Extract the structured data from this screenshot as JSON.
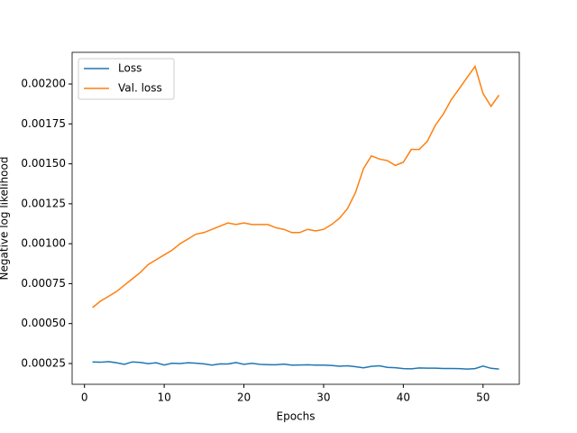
{
  "chart_data": {
    "type": "line",
    "xlabel": "Epochs",
    "ylabel": "Negative log likelihood",
    "x": [
      1,
      2,
      3,
      4,
      5,
      6,
      7,
      8,
      9,
      10,
      11,
      12,
      13,
      14,
      15,
      16,
      17,
      18,
      19,
      20,
      21,
      22,
      23,
      24,
      25,
      26,
      27,
      28,
      29,
      30,
      31,
      32,
      33,
      34,
      35,
      36,
      37,
      38,
      39,
      40,
      41,
      42,
      43,
      44,
      45,
      46,
      47,
      48,
      49,
      50,
      51,
      52
    ],
    "series": [
      {
        "name": "Loss",
        "color": "#1f77b4",
        "values": [
          0.00026,
          0.000258,
          0.000262,
          0.000255,
          0.000245,
          0.00026,
          0.000257,
          0.000249,
          0.000255,
          0.000241,
          0.000252,
          0.00025,
          0.000255,
          0.000252,
          0.000248,
          0.00024,
          0.000248,
          0.000247,
          0.000256,
          0.000245,
          0.000251,
          0.000245,
          0.000243,
          0.000242,
          0.000246,
          0.00024,
          0.000241,
          0.000242,
          0.00024,
          0.00024,
          0.000238,
          0.000233,
          0.000236,
          0.00023,
          0.000223,
          0.000232,
          0.000236,
          0.000226,
          0.000224,
          0.000218,
          0.000217,
          0.000222,
          0.000221,
          0.000221,
          0.000219,
          0.000219,
          0.000218,
          0.000215,
          0.000218,
          0.000234,
          0.00022,
          0.000215
        ]
      },
      {
        "name": "Val. loss",
        "color": "#ff7f0e",
        "values": [
          0.0006,
          0.00064,
          0.00067,
          0.0007,
          0.00074,
          0.00078,
          0.00082,
          0.00087,
          0.0009,
          0.00093,
          0.00096,
          0.001,
          0.00103,
          0.00106,
          0.00107,
          0.00109,
          0.00111,
          0.00113,
          0.00112,
          0.00113,
          0.00112,
          0.00112,
          0.00112,
          0.0011,
          0.00109,
          0.00107,
          0.00107,
          0.00109,
          0.00108,
          0.00109,
          0.00112,
          0.00116,
          0.00122,
          0.00132,
          0.00147,
          0.00155,
          0.00153,
          0.00152,
          0.00149,
          0.00151,
          0.00159,
          0.00159,
          0.00164,
          0.00174,
          0.00181,
          0.0019,
          0.00197,
          0.00204,
          0.00211,
          0.00194,
          0.00186,
          0.00193
        ]
      }
    ],
    "xlim": [
      -1.55,
      54.55
    ],
    "xticks": [
      0,
      10,
      20,
      30,
      40,
      50
    ],
    "ylim": [
      0.00012,
      0.002198
    ],
    "yticks": [
      0.00025,
      {
        "value": 0.0005,
        "label": "0.00050"
      },
      0.00075,
      {
        "value": 0.001,
        "label": "0.00100"
      },
      0.00125,
      {
        "value": 0.0015,
        "label": "0.00150"
      },
      0.00175,
      {
        "value": 0.002,
        "label": "0.00200"
      }
    ],
    "legend": "upper left",
    "grid": false
  }
}
